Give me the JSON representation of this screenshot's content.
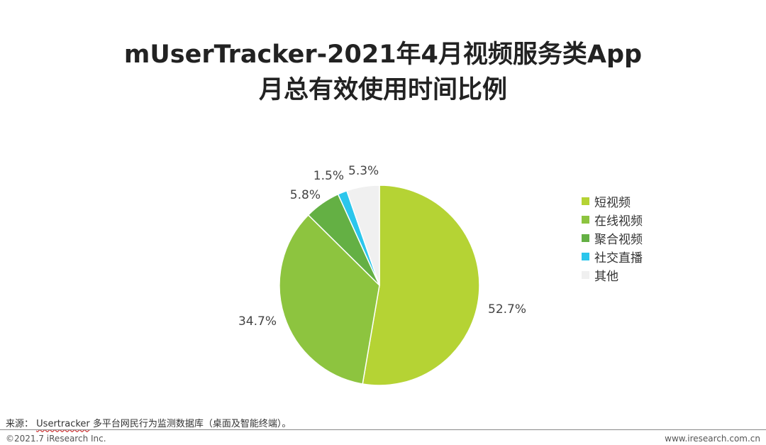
{
  "title": {
    "line1": "mUserTracker-2021年4月视频服务类App",
    "line2": "月总有效使用时间比例"
  },
  "chart_data": {
    "type": "pie",
    "title": "mUserTracker-2021年4月视频服务类App 月总有效使用时间比例",
    "labels": [
      "短视频",
      "在线视频",
      "聚合视频",
      "社交直播",
      "其他"
    ],
    "values": [
      52.7,
      34.7,
      5.8,
      1.5,
      5.3
    ],
    "value_labels": [
      "52.7%",
      "34.7%",
      "5.8%",
      "1.5%",
      "5.3%"
    ],
    "colors": [
      "#b5d334",
      "#8dc43f",
      "#64b044",
      "#2bc6ec",
      "#f0f0f0"
    ],
    "start": "12 o'clock, clockwise",
    "legend_position": "right"
  },
  "source": {
    "prefix": "来源：",
    "brand": "Usertracker",
    "text": " 多平台网民行为监测数据库（桌面及智能终端）。"
  },
  "footer": {
    "copyright": "©2021.7 iResearch Inc.",
    "website": "www.iresearch.com.cn"
  }
}
